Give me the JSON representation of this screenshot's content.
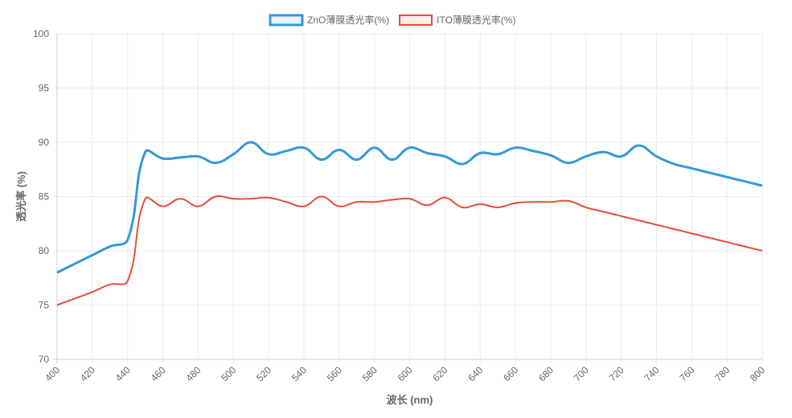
{
  "chart_data": {
    "type": "line",
    "title": "",
    "xlabel": "波长 (nm)",
    "ylabel": "透光率 (%)",
    "xlim": [
      400,
      800
    ],
    "ylim": [
      70,
      100
    ],
    "x_ticks": [
      400,
      420,
      440,
      460,
      480,
      500,
      520,
      540,
      560,
      580,
      600,
      620,
      640,
      660,
      680,
      700,
      720,
      740,
      760,
      780,
      800
    ],
    "y_ticks": [
      70,
      75,
      80,
      85,
      90,
      95,
      100
    ],
    "grid": true,
    "legend_position": "top",
    "x": [
      400,
      410,
      420,
      430,
      440,
      450,
      460,
      470,
      480,
      490,
      500,
      510,
      520,
      530,
      540,
      550,
      560,
      570,
      580,
      590,
      600,
      610,
      620,
      630,
      640,
      650,
      660,
      670,
      680,
      690,
      700,
      710,
      720,
      730,
      740,
      750,
      760,
      770,
      780,
      790,
      800
    ],
    "series": [
      {
        "name": "ZnO薄膜透光率(%)",
        "color": "#3498db",
        "values": [
          78.0,
          78.8,
          79.6,
          80.4,
          81.0,
          89.1,
          88.5,
          88.6,
          88.7,
          88.1,
          88.9,
          90.0,
          88.9,
          89.2,
          89.5,
          88.4,
          89.3,
          88.4,
          89.5,
          88.4,
          89.5,
          89.0,
          88.7,
          88.0,
          89.0,
          88.9,
          89.5,
          89.2,
          88.8,
          88.1,
          88.7,
          89.1,
          88.7,
          89.7,
          88.7,
          88.0,
          87.6,
          87.2,
          86.8,
          86.4,
          86.0
        ]
      },
      {
        "name": "ITO薄膜透光率(%)",
        "color": "#e74c3c",
        "values": [
          75.0,
          75.6,
          76.2,
          76.9,
          77.2,
          84.8,
          84.1,
          84.8,
          84.1,
          85.0,
          84.8,
          84.8,
          84.9,
          84.5,
          84.1,
          85.0,
          84.1,
          84.5,
          84.5,
          84.7,
          84.8,
          84.2,
          84.9,
          84.0,
          84.3,
          84.0,
          84.4,
          84.5,
          84.5,
          84.6,
          84.0,
          83.6,
          83.2,
          82.8,
          82.4,
          82.0,
          81.6,
          81.2,
          80.8,
          80.4,
          80.0
        ]
      }
    ]
  }
}
